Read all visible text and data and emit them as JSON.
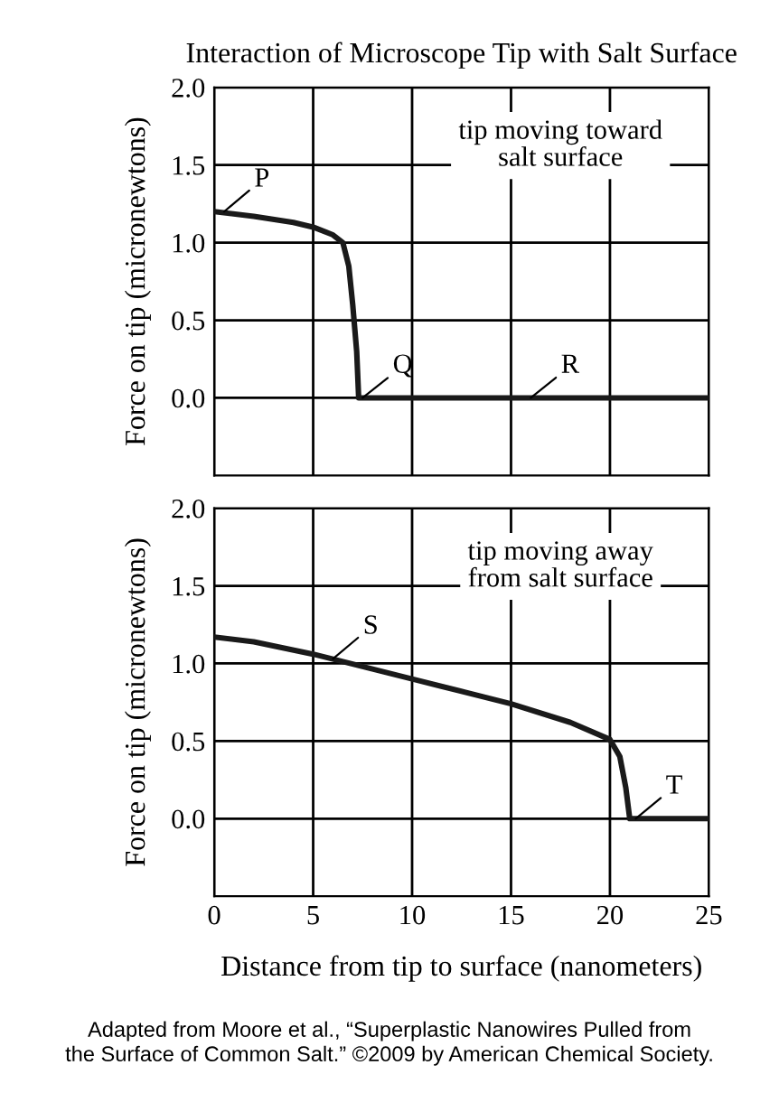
{
  "chart_data": [
    {
      "type": "line",
      "title": "Interaction of Microscope Tip with Salt Surface",
      "ylabel": "Force on tip (micronewtons)",
      "x": [
        0,
        2,
        4,
        5,
        6,
        6.5,
        6.8,
        7,
        7.2,
        7.3,
        10,
        15,
        20,
        25
      ],
      "series": [
        {
          "color": "#1a1a1a",
          "values": [
            1.2,
            1.17,
            1.13,
            1.1,
            1.05,
            1.0,
            0.85,
            0.6,
            0.3,
            0.0,
            0.0,
            0.0,
            0.0,
            0.0
          ]
        }
      ],
      "xlim": [
        0,
        25
      ],
      "xticks": [
        0,
        5,
        10,
        15,
        20,
        25
      ],
      "ylim": [
        -0.5,
        2.0
      ],
      "yticks": [
        {
          "value": 0,
          "label": "0.0"
        },
        {
          "value": 0.5,
          "label": "0.5"
        },
        {
          "value": 1,
          "label": "1.0"
        },
        {
          "value": 1.5,
          "label": "1.5"
        },
        {
          "value": 2,
          "label": "2.0"
        }
      ],
      "tick_labels": "y",
      "grid": true,
      "marker": "none",
      "line_style": "solid",
      "legend": false,
      "annotations": [
        {
          "text": "P",
          "x": 0.5,
          "y": 1.2
        },
        {
          "text": "Q",
          "x": 7.5,
          "y": 0.0
        },
        {
          "text": "R",
          "x": 16,
          "y": 0.0
        },
        "tip moving toward\nsalt surface"
      ]
    },
    {
      "type": "line",
      "ylabel": "Force on tip (micronewtons)",
      "xlabel": "Distance from tip to surface (nanometers)",
      "x": [
        0,
        2,
        5,
        10,
        15,
        18,
        20,
        20.5,
        20.8,
        21,
        25
      ],
      "series": [
        {
          "color": "#1a1a1a",
          "values": [
            1.17,
            1.14,
            1.06,
            0.9,
            0.74,
            0.62,
            0.51,
            0.4,
            0.2,
            0.0,
            0.0
          ]
        }
      ],
      "xlim": [
        0,
        25
      ],
      "xticks": [
        0,
        5,
        10,
        15,
        20,
        25
      ],
      "ylim": [
        -0.5,
        2.0
      ],
      "yticks": [
        {
          "value": 0,
          "label": "0.0"
        },
        {
          "value": 0.5,
          "label": "0.5"
        },
        {
          "value": 1,
          "label": "1.0"
        },
        {
          "value": 1.5,
          "label": "1.5"
        },
        {
          "value": 2,
          "label": "2.0"
        }
      ],
      "grid": true,
      "marker": "none",
      "line_style": "solid",
      "legend": false,
      "annotations": [
        {
          "text": "S",
          "x": 6,
          "y": 1.03
        },
        {
          "text": "T",
          "x": 21.3,
          "y": 0.0
        },
        "tip moving away\nfrom salt surface",
        "Adapted from Moore et al., “Superplastic Nanowires Pulled from\nthe Surface of Common Salt.” ©2009 by American Chemical Society."
      ]
    }
  ]
}
